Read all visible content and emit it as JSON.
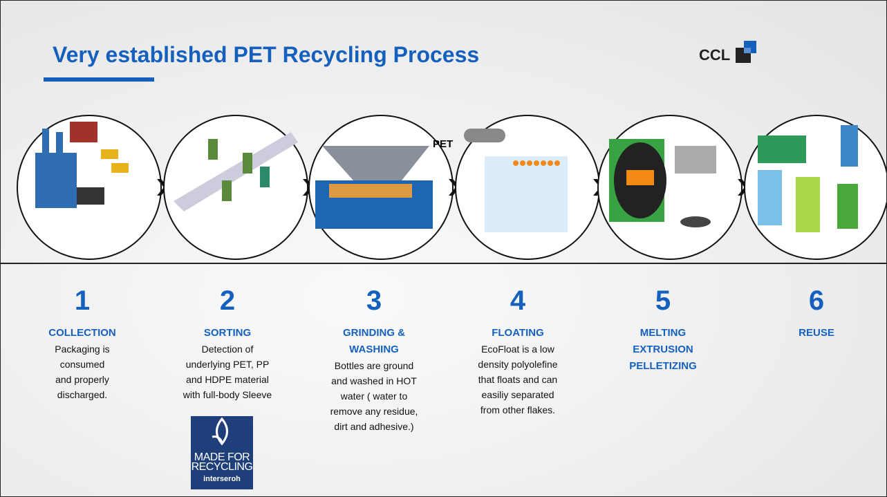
{
  "header": {
    "title": "Very established PET Recycling Process",
    "logo": "CCL"
  },
  "image_label": "PET",
  "steps": [
    {
      "number": "1",
      "title": [
        "COLLECTION"
      ],
      "text": [
        "Packaging is",
        "consumed",
        "and properly",
        "discharged."
      ]
    },
    {
      "number": "2",
      "title": [
        "SORTING"
      ],
      "text": [
        "Detection of",
        "underlying PET, PP",
        "and HDPE material",
        "with full-body Sleeve"
      ]
    },
    {
      "number": "3",
      "title": [
        "GRINDING &",
        "WASHING"
      ],
      "text": [
        "Bottles are ground",
        "and washed in HOT",
        "water ( water to",
        "remove any residue,",
        "dirt and adhesive.)"
      ]
    },
    {
      "number": "4",
      "title": [
        "FLOATING"
      ],
      "text": [
        "EcoFloat is a low",
        "density polyolefine",
        "that floats and can",
        "easiliy separated",
        "from other flakes."
      ]
    },
    {
      "number": "5",
      "title": [
        "MELTING",
        "EXTRUSION",
        "PELLETIZING"
      ],
      "text": []
    },
    {
      "number": "6",
      "title": [
        "REUSE"
      ],
      "text": []
    }
  ],
  "badge": {
    "lines": [
      "MADE FOR",
      "RECYCLING"
    ],
    "brand": "interseroh"
  }
}
